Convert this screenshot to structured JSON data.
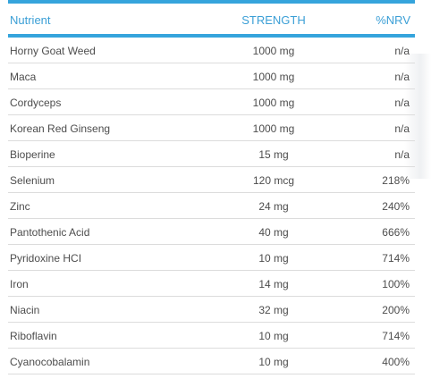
{
  "table": {
    "headers": {
      "nutrient": "Nutrient",
      "strength": "STRENGTH",
      "nrv": "%NRV"
    },
    "rows": [
      {
        "nutrient": "Horny Goat Weed",
        "strength": "1000 mg",
        "nrv": "n/a"
      },
      {
        "nutrient": "Maca",
        "strength": "1000 mg",
        "nrv": "n/a"
      },
      {
        "nutrient": "Cordyceps",
        "strength": "1000 mg",
        "nrv": "n/a"
      },
      {
        "nutrient": "Korean Red Ginseng",
        "strength": "1000 mg",
        "nrv": "n/a"
      },
      {
        "nutrient": "Bioperine",
        "strength": "15 mg",
        "nrv": "n/a"
      },
      {
        "nutrient": "Selenium",
        "strength": "120 mcg",
        "nrv": "218%"
      },
      {
        "nutrient": "Zinc",
        "strength": "24 mg",
        "nrv": "240%"
      },
      {
        "nutrient": "Pantothenic Acid",
        "strength": "40 mg",
        "nrv": "666%"
      },
      {
        "nutrient": "Pyridoxine HCI",
        "strength": "10 mg",
        "nrv": "714%"
      },
      {
        "nutrient": "Iron",
        "strength": "14 mg",
        "nrv": "100%"
      },
      {
        "nutrient": "Niacin",
        "strength": "32 mg",
        "nrv": "200%"
      },
      {
        "nutrient": "Riboflavin",
        "strength": "10 mg",
        "nrv": "714%"
      },
      {
        "nutrient": "Cyanocobalamin",
        "strength": "10 mg",
        "nrv": "400%"
      }
    ]
  },
  "colors": {
    "accent": "#35a4dc",
    "header_text": "#3b9fd6",
    "row_text": "#4d4d4d",
    "row_divider": "#dcdcdc"
  }
}
